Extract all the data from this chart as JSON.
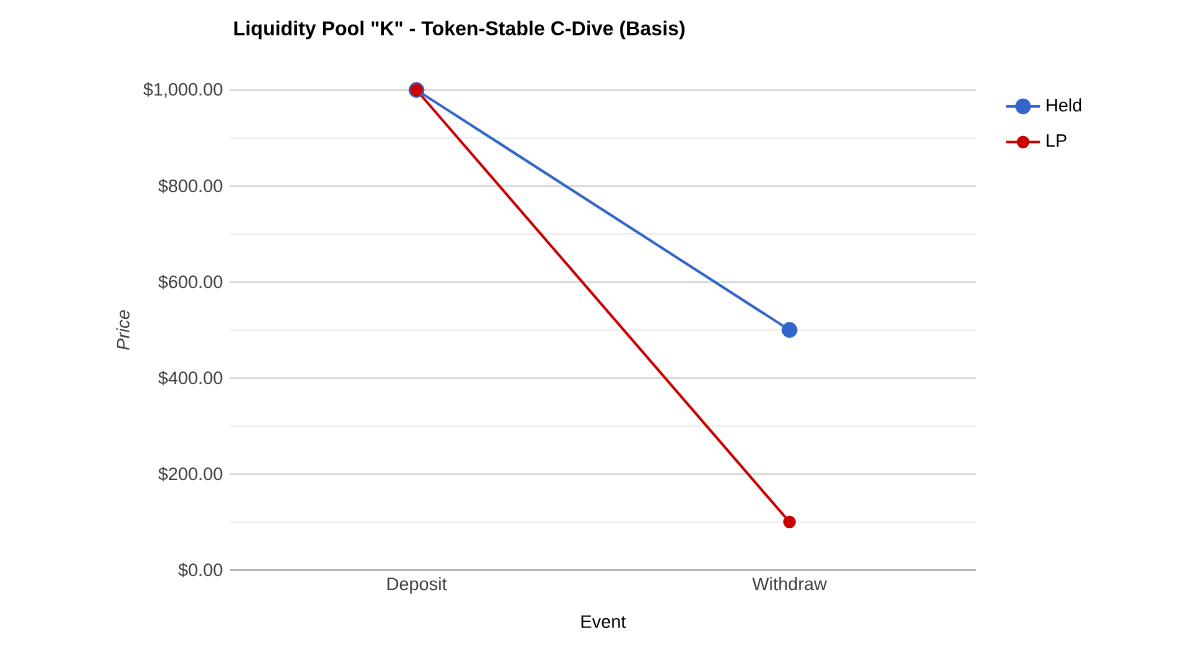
{
  "chart_data": {
    "type": "line",
    "title": "Liquidity Pool \"K\" - Token-Stable C-Dive (Basis)",
    "xlabel": "Event",
    "ylabel": "Price",
    "categories": [
      "Deposit",
      "Withdraw"
    ],
    "series": [
      {
        "name": "Held",
        "color": "#3366cc",
        "values": [
          1000,
          500
        ]
      },
      {
        "name": "LP",
        "color": "#cc0000",
        "values": [
          1000,
          100
        ]
      }
    ],
    "ylim": [
      0,
      1000
    ],
    "yticks": [
      {
        "value": 0,
        "label": "$0.00"
      },
      {
        "value": 200,
        "label": "$200.00"
      },
      {
        "value": 400,
        "label": "$400.00"
      },
      {
        "value": 600,
        "label": "$600.00"
      },
      {
        "value": 800,
        "label": "$800.00"
      },
      {
        "value": 1000,
        "label": "$1,000.00"
      }
    ],
    "grid": "y",
    "legend": "top right",
    "marker": "circle",
    "line_style": "solid"
  }
}
